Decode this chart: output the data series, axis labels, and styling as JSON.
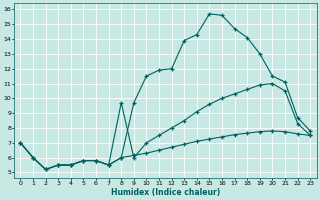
{
  "xlabel": "Humidex (Indice chaleur)",
  "bg_color": "#c8e8e4",
  "grid_color": "#ffffff",
  "line_color": "#006060",
  "xlim": [
    -0.5,
    23.5
  ],
  "ylim": [
    4.6,
    16.4
  ],
  "xticks": [
    0,
    1,
    2,
    3,
    4,
    5,
    6,
    7,
    8,
    9,
    10,
    11,
    12,
    13,
    14,
    15,
    16,
    17,
    18,
    19,
    20,
    21,
    22,
    23
  ],
  "yticks": [
    5,
    6,
    7,
    8,
    9,
    10,
    11,
    12,
    13,
    14,
    15,
    16
  ],
  "line1_x": [
    0,
    1,
    2,
    3,
    4,
    5,
    6,
    7,
    8,
    9,
    10,
    11,
    12,
    13,
    14,
    15,
    16,
    17,
    18,
    19,
    20,
    21,
    22,
    23
  ],
  "line1_y": [
    7.0,
    6.0,
    5.2,
    5.5,
    5.5,
    5.8,
    5.8,
    5.5,
    6.0,
    9.7,
    11.5,
    11.9,
    12.0,
    13.9,
    14.3,
    15.7,
    15.6,
    14.7,
    14.1,
    13.0,
    11.5,
    11.1,
    8.7,
    7.8
  ],
  "line2_x": [
    0,
    1,
    2,
    3,
    4,
    5,
    6,
    7,
    8,
    9,
    10,
    11,
    12,
    13,
    14,
    15,
    16,
    17,
    18,
    19,
    20,
    21,
    22,
    23
  ],
  "line2_y": [
    7.0,
    6.0,
    5.2,
    5.5,
    5.5,
    5.8,
    5.8,
    5.5,
    9.7,
    6.0,
    7.0,
    7.5,
    8.0,
    8.5,
    9.1,
    9.6,
    10.0,
    10.3,
    10.6,
    10.9,
    11.0,
    10.5,
    8.3,
    7.5
  ],
  "line3_x": [
    0,
    1,
    2,
    3,
    4,
    5,
    6,
    7,
    8,
    9,
    10,
    11,
    12,
    13,
    14,
    15,
    16,
    17,
    18,
    19,
    20,
    21,
    22,
    23
  ],
  "line3_y": [
    7.0,
    6.0,
    5.2,
    5.5,
    5.5,
    5.8,
    5.8,
    5.5,
    6.0,
    6.15,
    6.3,
    6.5,
    6.7,
    6.9,
    7.1,
    7.25,
    7.4,
    7.55,
    7.65,
    7.75,
    7.8,
    7.75,
    7.6,
    7.5
  ]
}
